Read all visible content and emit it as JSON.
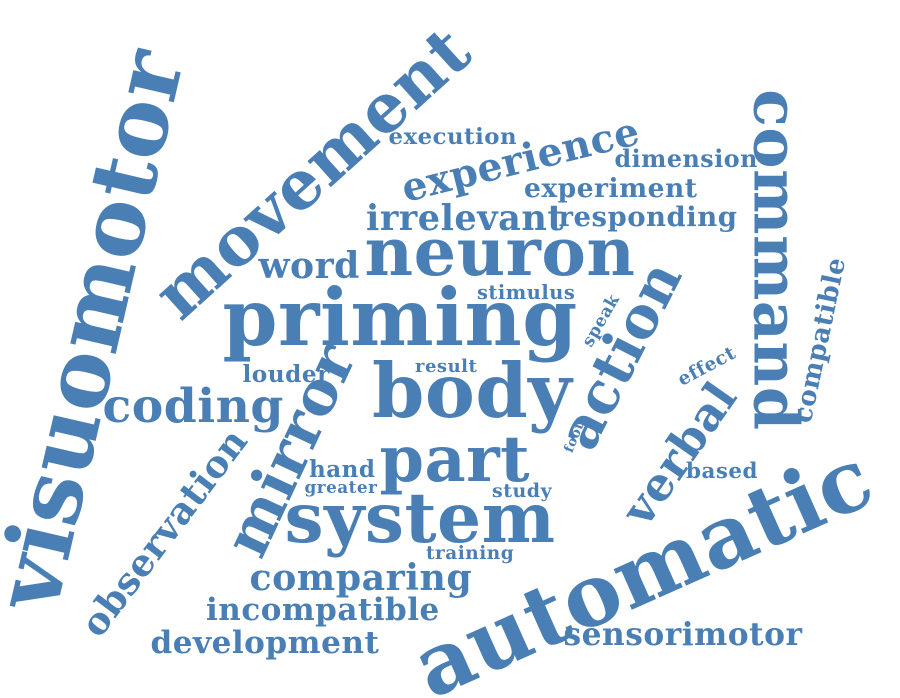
{
  "color": "#4a7fb5",
  "words": [
    "automatic",
    "priming",
    "action",
    "neuron",
    "body",
    "system",
    "visuomotor",
    "movement",
    "command",
    "mirror",
    "part",
    "coding",
    "experience",
    "observation",
    "comparing",
    "verbal",
    "incompatible",
    "development",
    "irrelevant",
    "responding",
    "sensorimotor",
    "word",
    "experiment",
    "dimension",
    "execution",
    "compatible",
    "louder",
    "stimulus",
    "result",
    "speak",
    "effect",
    "hand",
    "greater",
    "study",
    "training",
    "based",
    "foot"
  ]
}
